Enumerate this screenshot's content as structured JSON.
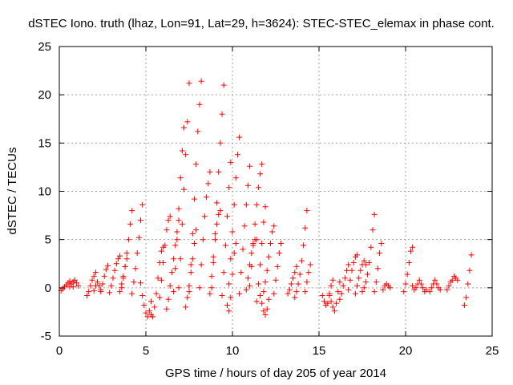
{
  "chart_data": {
    "type": "scatter",
    "title": "dSTEC Iono. truth (lhaz, Lon=91, Lat=29, h=3624): STEC-STEC_elemax in phase cont.",
    "xlabel": "GPS time / hours of day 205 of year 2014",
    "ylabel": "dSTEC  / TECUs",
    "xlim": [
      0,
      25
    ],
    "ylim": [
      -5,
      25
    ],
    "x_ticks": [
      0,
      5,
      10,
      15,
      20,
      25
    ],
    "y_ticks": [
      -5,
      0,
      5,
      10,
      15,
      20,
      25
    ],
    "grid": true,
    "marker": "+",
    "color": "#ff0000",
    "arcs": [
      {
        "x": [
          0.1,
          0.2,
          0.3,
          0.4,
          0.5,
          0.6,
          0.7,
          0.8
        ],
        "y": [
          -0.3,
          -0.1,
          0.1,
          0.3,
          0.5,
          0.7,
          0.4,
          0.1
        ]
      },
      {
        "x": [
          0.6,
          0.7,
          0.8,
          0.9,
          1.0,
          1.1
        ],
        "y": [
          0.1,
          0.4,
          0.6,
          0.8,
          0.5,
          0.2
        ]
      },
      {
        "x": [
          1.6,
          1.7,
          1.8,
          1.9,
          2.0,
          2.1
        ],
        "y": [
          -0.8,
          -0.4,
          0.2,
          0.8,
          1.2,
          1.6
        ]
      },
      {
        "x": [
          2.0,
          2.1,
          2.2,
          2.3,
          2.4
        ],
        "y": [
          -0.3,
          0.2,
          0.6,
          0.2,
          -0.2
        ]
      },
      {
        "x": [
          2.4,
          2.5,
          2.6,
          2.7,
          2.8
        ],
        "y": [
          -0.4,
          0.4,
          1.2,
          1.9,
          2.3
        ]
      },
      {
        "x": [
          2.9,
          3.0,
          3.1,
          3.2,
          3.3,
          3.4,
          3.5
        ],
        "y": [
          -0.5,
          0.2,
          1.0,
          1.8,
          2.5,
          3.0,
          3.3
        ]
      },
      {
        "x": [
          3.5,
          3.6,
          3.7,
          3.8,
          3.9
        ],
        "y": [
          -0.4,
          0.4,
          1.2,
          2.2,
          3.0
        ]
      },
      {
        "x": [
          3.6,
          3.7,
          3.8,
          3.9,
          4.0,
          4.1,
          4.2
        ],
        "y": [
          0.0,
          1.0,
          2.2,
          3.6,
          5.0,
          6.6,
          8.0
        ]
      },
      {
        "x": [
          4.2,
          4.3,
          4.4,
          4.5,
          4.6,
          4.7,
          4.8
        ],
        "y": [
          -0.6,
          0.6,
          2.0,
          3.6,
          5.2,
          7.0,
          8.6
        ]
      },
      {
        "x": [
          4.7,
          4.8,
          4.9,
          5.0,
          5.1,
          5.2,
          5.3
        ],
        "y": [
          0.5,
          -0.8,
          -1.8,
          -2.6,
          -3.0,
          -2.4,
          -1.4
        ]
      },
      {
        "x": [
          5.3,
          5.4,
          5.5,
          5.6,
          5.7,
          5.8,
          5.9,
          6.0
        ],
        "y": [
          -2.8,
          -3.0,
          -2.0,
          -0.6,
          1.0,
          2.6,
          3.8,
          4.2
        ]
      },
      {
        "x": [
          5.8,
          5.9,
          6.0,
          6.1,
          6.2,
          6.3,
          6.4
        ],
        "y": [
          -1.0,
          0.8,
          2.6,
          4.4,
          6.0,
          7.0,
          7.4
        ]
      },
      {
        "x": [
          6.2,
          6.3,
          6.4,
          6.5,
          6.6,
          6.7,
          6.8,
          6.9
        ],
        "y": [
          -2.2,
          -1.2,
          0.2,
          1.6,
          3.0,
          4.4,
          5.8,
          7.0
        ]
      },
      {
        "x": [
          6.6,
          6.7,
          6.8,
          6.9,
          7.0,
          7.1,
          7.2
        ],
        "y": [
          -0.4,
          2.0,
          5.0,
          8.2,
          11.4,
          14.2,
          16.6
        ]
      },
      {
        "x": [
          6.9,
          7.0,
          7.1,
          7.2,
          7.3,
          7.4,
          7.5
        ],
        "y": [
          0.0,
          3.0,
          6.6,
          10.2,
          13.8,
          17.2,
          21.2
        ]
      },
      {
        "x": [
          7.3,
          7.4,
          7.5,
          7.6,
          7.7,
          7.8,
          7.9
        ],
        "y": [
          -2.0,
          -1.0,
          0.2,
          1.6,
          3.0,
          4.6,
          6.0
        ]
      },
      {
        "x": [
          7.5,
          7.6,
          7.7,
          7.8,
          7.9,
          8.0,
          8.1,
          8.2
        ],
        "y": [
          -0.4,
          2.4,
          5.6,
          9.2,
          12.8,
          16.2,
          19.0,
          21.4
        ]
      },
      {
        "x": [
          8.1,
          8.2,
          8.3,
          8.4,
          8.5,
          8.6,
          8.7
        ],
        "y": [
          0.0,
          2.4,
          5.0,
          7.4,
          9.4,
          10.8,
          12.0
        ]
      },
      {
        "x": [
          8.7,
          8.8,
          8.9,
          9.0,
          9.1,
          9.2,
          9.3
        ],
        "y": [
          -0.6,
          1.2,
          3.2,
          5.0,
          6.6,
          7.6,
          8.0
        ]
      },
      {
        "x": [
          8.8,
          8.9,
          9.0,
          9.1,
          9.2,
          9.3,
          9.4,
          9.5
        ],
        "y": [
          0.0,
          2.6,
          5.6,
          8.8,
          12.0,
          15.0,
          18.0,
          21.0
        ]
      },
      {
        "x": [
          9.4,
          9.5,
          9.6,
          9.7,
          9.8,
          9.9
        ],
        "y": [
          -0.8,
          1.6,
          4.4,
          7.4,
          10.4,
          13.0
        ]
      },
      {
        "x": [
          9.7,
          9.8,
          9.9,
          10.0,
          10.1,
          10.2
        ],
        "y": [
          -1.8,
          -2.4,
          -1.0,
          1.4,
          3.6,
          4.6
        ]
      },
      {
        "x": [
          9.8,
          9.9,
          10.0,
          10.1,
          10.2,
          10.3,
          10.4
        ],
        "y": [
          0.4,
          3.0,
          5.8,
          8.6,
          11.4,
          13.8,
          15.6
        ]
      },
      {
        "x": [
          10.4,
          10.5,
          10.6,
          10.7,
          10.8,
          10.9,
          11.0
        ],
        "y": [
          -0.6,
          1.6,
          4.0,
          6.4,
          8.6,
          10.6,
          12.6
        ]
      },
      {
        "x": [
          10.8,
          10.9,
          11.0,
          11.1,
          11.2,
          11.3,
          11.4
        ],
        "y": [
          -0.2,
          1.0,
          2.4,
          3.6,
          4.6,
          5.0,
          5.0
        ]
      },
      {
        "x": [
          11.0,
          11.1,
          11.2,
          11.3,
          11.4,
          11.5,
          11.6,
          11.7
        ],
        "y": [
          0.2,
          2.2,
          4.4,
          6.6,
          8.6,
          10.4,
          11.8,
          12.8
        ]
      },
      {
        "x": [
          11.4,
          11.5,
          11.6,
          11.7,
          11.8,
          11.9
        ],
        "y": [
          -1.4,
          0.4,
          2.4,
          4.6,
          6.8,
          8.4
        ]
      },
      {
        "x": [
          11.6,
          11.7,
          11.8,
          11.9,
          12.0,
          12.1
        ],
        "y": [
          -0.8,
          -1.6,
          -2.4,
          -2.8,
          -2.2,
          -1.2
        ]
      },
      {
        "x": [
          11.8,
          11.9,
          12.0,
          12.1,
          12.2,
          12.3,
          12.4
        ],
        "y": [
          -0.4,
          0.6,
          1.8,
          3.2,
          4.6,
          5.8,
          6.4
        ]
      },
      {
        "x": [
          12.4,
          12.5,
          12.6,
          12.7,
          12.8
        ],
        "y": [
          -0.6,
          0.8,
          2.2,
          3.6,
          4.6
        ]
      },
      {
        "x": [
          13.2,
          13.3,
          13.4,
          13.5,
          13.6,
          13.7
        ],
        "y": [
          -0.6,
          -0.2,
          0.4,
          1.0,
          1.6,
          2.2
        ]
      },
      {
        "x": [
          13.6,
          13.7,
          13.8,
          13.9,
          14.0,
          14.1,
          14.2,
          14.3
        ],
        "y": [
          -1.0,
          -0.4,
          0.4,
          1.4,
          2.8,
          4.4,
          6.2,
          8.0
        ]
      },
      {
        "x": [
          14.2,
          14.3,
          14.4,
          14.5
        ],
        "y": [
          -0.4,
          0.6,
          1.6,
          2.4
        ]
      },
      {
        "x": [
          15.2,
          15.3,
          15.4,
          15.5,
          15.6,
          15.7,
          15.8
        ],
        "y": [
          -0.8,
          -1.4,
          -1.8,
          -1.6,
          -0.8,
          0.2,
          0.8
        ]
      },
      {
        "x": [
          15.6,
          15.7,
          15.8,
          15.9,
          16.0,
          16.1,
          16.2
        ],
        "y": [
          -0.6,
          -1.4,
          -2.0,
          -2.4,
          -1.6,
          -0.4,
          0.6
        ]
      },
      {
        "x": [
          16.2,
          16.3,
          16.4,
          16.5,
          16.6,
          16.7
        ],
        "y": [
          -1.2,
          -0.6,
          0.2,
          1.0,
          1.8,
          2.4
        ]
      },
      {
        "x": [
          16.7,
          16.8,
          16.9,
          17.0,
          17.1,
          17.2
        ],
        "y": [
          -0.2,
          0.8,
          1.8,
          2.6,
          3.2,
          3.4
        ]
      },
      {
        "x": [
          17.1,
          17.2,
          17.3,
          17.4,
          17.5,
          17.6,
          17.7
        ],
        "y": [
          -0.6,
          0.2,
          1.0,
          1.8,
          2.4,
          2.8,
          2.4
        ]
      },
      {
        "x": [
          17.5,
          17.6,
          17.7,
          17.8,
          17.9,
          18.0,
          18.1,
          18.2
        ],
        "y": [
          -0.4,
          0.0,
          0.6,
          1.4,
          2.6,
          4.2,
          6.0,
          7.6
        ]
      },
      {
        "x": [
          18.2,
          18.3,
          18.4,
          18.5,
          18.6
        ],
        "y": [
          -0.4,
          0.6,
          2.0,
          3.6,
          4.6
        ]
      },
      {
        "x": [
          18.7,
          18.8,
          18.9,
          19.0,
          19.1
        ],
        "y": [
          -0.2,
          0.2,
          0.4,
          0.2,
          0.0
        ]
      },
      {
        "x": [
          19.9,
          20.0,
          20.1,
          20.2,
          20.3,
          20.4
        ],
        "y": [
          -0.4,
          0.4,
          1.4,
          2.6,
          3.8,
          4.2
        ]
      },
      {
        "x": [
          20.4,
          20.5,
          20.6,
          20.7,
          20.8,
          20.9,
          21.0,
          21.1,
          21.2
        ],
        "y": [
          0.2,
          -0.2,
          0.0,
          0.4,
          0.8,
          0.4,
          0.0,
          -0.4,
          -0.2
        ]
      },
      {
        "x": [
          21.4,
          21.5,
          21.6,
          21.7,
          21.8,
          21.9,
          22.0
        ],
        "y": [
          -0.4,
          0.0,
          0.4,
          0.8,
          0.4,
          0.0,
          -0.2
        ]
      },
      {
        "x": [
          22.4,
          22.5,
          22.6,
          22.7,
          22.8,
          22.9,
          23.0
        ],
        "y": [
          -0.2,
          0.2,
          0.6,
          0.8,
          1.2,
          1.0,
          0.8
        ]
      },
      {
        "x": [
          23.4,
          23.5,
          23.6,
          23.7,
          23.8
        ],
        "y": [
          -1.8,
          -1.0,
          0.4,
          1.8,
          3.4
        ]
      }
    ]
  }
}
